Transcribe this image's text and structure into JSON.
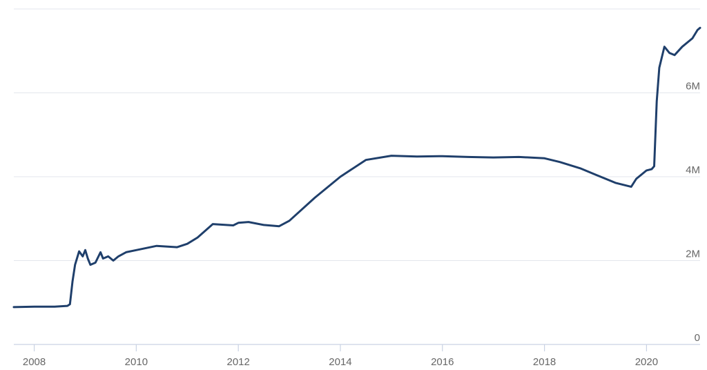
{
  "chart_data": {
    "type": "line",
    "title": "",
    "xlabel": "",
    "ylabel": "",
    "xlim": [
      2007.6,
      2021.05
    ],
    "ylim": [
      0,
      8
    ],
    "x_ticks": [
      {
        "value": 2008,
        "label": "2008"
      },
      {
        "value": 2010,
        "label": "2010"
      },
      {
        "value": 2012,
        "label": "2012"
      },
      {
        "value": 2014,
        "label": "2014"
      },
      {
        "value": 2016,
        "label": "2016"
      },
      {
        "value": 2018,
        "label": "2018"
      },
      {
        "value": 2020,
        "label": "2020"
      }
    ],
    "y_ticks": [
      {
        "value": 0,
        "label": "0"
      },
      {
        "value": 2,
        "label": "2M"
      },
      {
        "value": 4,
        "label": "4M"
      },
      {
        "value": 6,
        "label": "6M"
      },
      {
        "value": 8,
        "label": ""
      }
    ],
    "grid": true,
    "legend": "none",
    "series": [
      {
        "color": "#1f3f6b",
        "x": [
          2007.6,
          2008.0,
          2008.4,
          2008.65,
          2008.7,
          2008.75,
          2008.8,
          2008.88,
          2008.95,
          2009.0,
          2009.05,
          2009.1,
          2009.2,
          2009.3,
          2009.35,
          2009.45,
          2009.55,
          2009.65,
          2009.8,
          2010.0,
          2010.4,
          2010.8,
          2011.0,
          2011.2,
          2011.5,
          2011.9,
          2012.0,
          2012.2,
          2012.5,
          2012.8,
          2013.0,
          2013.5,
          2014.0,
          2014.5,
          2015.0,
          2015.5,
          2016.0,
          2016.5,
          2017.0,
          2017.5,
          2018.0,
          2018.3,
          2018.7,
          2019.0,
          2019.4,
          2019.7,
          2019.8,
          2020.0,
          2020.1,
          2020.15,
          2020.2,
          2020.25,
          2020.35,
          2020.45,
          2020.55,
          2020.7,
          2020.9,
          2021.0,
          2021.05
        ],
        "y": [
          0.89,
          0.9,
          0.9,
          0.92,
          0.96,
          1.5,
          1.9,
          2.22,
          2.1,
          2.25,
          2.05,
          1.9,
          1.95,
          2.2,
          2.05,
          2.1,
          2.0,
          2.1,
          2.2,
          2.25,
          2.35,
          2.32,
          2.4,
          2.55,
          2.87,
          2.84,
          2.9,
          2.92,
          2.85,
          2.82,
          2.95,
          3.5,
          4.0,
          4.4,
          4.5,
          4.48,
          4.49,
          4.47,
          4.46,
          4.47,
          4.44,
          4.35,
          4.2,
          4.05,
          3.85,
          3.76,
          3.95,
          4.15,
          4.18,
          4.25,
          5.8,
          6.6,
          7.1,
          6.95,
          6.9,
          7.1,
          7.3,
          7.5,
          7.55
        ]
      }
    ]
  }
}
